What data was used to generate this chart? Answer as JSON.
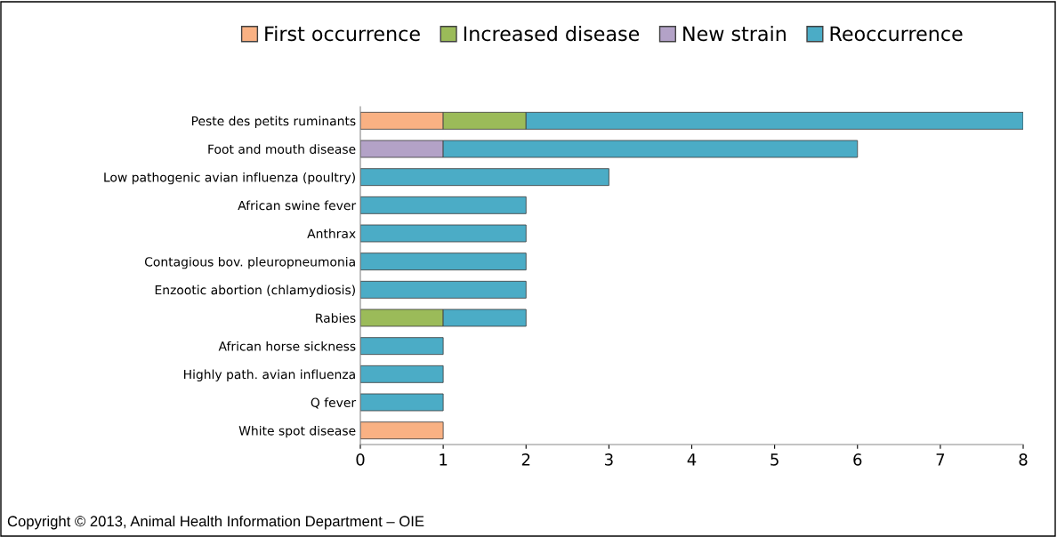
{
  "chart_data": {
    "type": "bar",
    "orientation": "horizontal",
    "stacked": true,
    "categories": [
      "Peste des petits ruminants",
      "Foot and mouth disease",
      "Low pathogenic avian influenza (poultry)",
      "African swine fever",
      "Anthrax",
      "Contagious bov. pleuropneumonia",
      "Enzootic abortion (chlamydiosis)",
      "Rabies",
      "African horse sickness",
      "Highly path. avian influenza",
      "Q fever",
      "White spot disease"
    ],
    "series": [
      {
        "name": "First occurrence",
        "color": "#f9b183",
        "values": [
          1,
          null,
          null,
          null,
          null,
          null,
          null,
          null,
          null,
          null,
          null,
          1
        ]
      },
      {
        "name": "Increased disease",
        "color": "#9bbb59",
        "values": [
          1,
          null,
          null,
          null,
          null,
          null,
          null,
          1,
          null,
          null,
          null,
          null
        ]
      },
      {
        "name": "New strain",
        "color": "#b3a2c7",
        "values": [
          null,
          1,
          null,
          null,
          null,
          null,
          null,
          null,
          null,
          null,
          null,
          null
        ]
      },
      {
        "name": "Reoccurrence",
        "color": "#4bacc6",
        "values": [
          6,
          5,
          3,
          2,
          2,
          2,
          2,
          1,
          1,
          1,
          1,
          null
        ]
      }
    ],
    "xlim": [
      0,
      8
    ],
    "xticks": [
      0,
      1,
      2,
      3,
      4,
      5,
      6,
      7,
      8
    ],
    "grid": false,
    "legend": "top",
    "annotations": [
      "Copyright © 2013, Animal Health Information Department – OIE"
    ]
  }
}
